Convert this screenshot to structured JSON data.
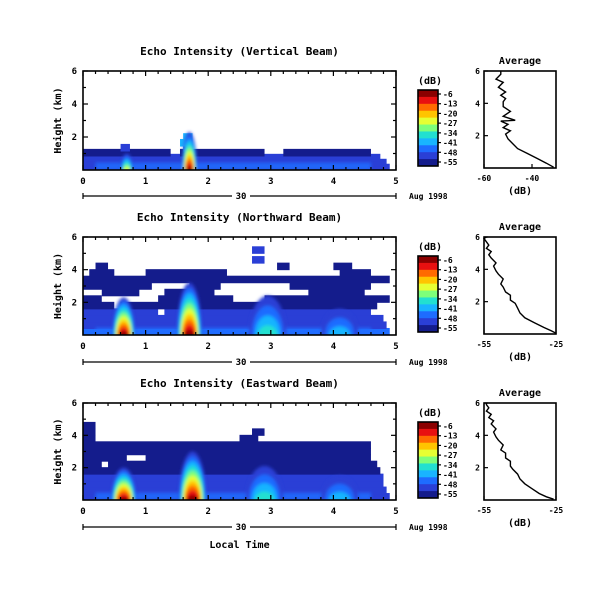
{
  "palette": [
    "#8b0000",
    "#e81010",
    "#ff6a00",
    "#ffc400",
    "#e6ff33",
    "#7dff7a",
    "#22e0d0",
    "#19b4ff",
    "#1e6cff",
    "#2a3fd6",
    "#141c8c"
  ],
  "chart_data": [
    {
      "type": "heatmap",
      "title": "Echo Intensity (Vertical Beam)",
      "xlabel": "",
      "ylabel": "Height (km)",
      "xlim": [
        0,
        5
      ],
      "ylim": [
        0,
        6
      ],
      "xticks": [
        "0",
        "1",
        "2",
        "3",
        "4",
        "5"
      ],
      "yticks": [
        "2",
        "4",
        "6"
      ],
      "date_label": "30",
      "date_suffix": "Aug 1998",
      "colorbar": {
        "unit": "(dB)",
        "ticks": [
          "-6",
          "-13",
          "-20",
          "-27",
          "-34",
          "-41",
          "-48",
          "-55"
        ]
      },
      "bands": [
        {
          "y": 0.15,
          "x": [
            [
              0.0,
              4.9
            ]
          ],
          "lvl": 9
        },
        {
          "y": 0.45,
          "x": [
            [
              0.0,
              4.85
            ]
          ],
          "lvl": 9
        },
        {
          "y": 0.75,
          "x": [
            [
              0.0,
              4.75
            ]
          ],
          "lvl": 9
        },
        {
          "y": 1.05,
          "x": [
            [
              0.0,
              1.4
            ],
            [
              1.55,
              2.9
            ],
            [
              3.2,
              4.6
            ]
          ],
          "lvl": 10
        },
        {
          "y": 1.35,
          "x": [
            [
              0.6,
              0.75
            ],
            [
              1.6,
              1.75
            ]
          ],
          "lvl": 9
        },
        {
          "y": 1.65,
          "x": [
            [
              1.55,
              1.75
            ]
          ],
          "lvl": 7
        },
        {
          "y": 2.0,
          "x": [
            [
              1.6,
              1.75
            ]
          ],
          "lvl": 7
        }
      ],
      "plumes": [
        {
          "x": 1.7,
          "h": 2.3,
          "w": 0.12,
          "pk": 1
        },
        {
          "x": 0.7,
          "h": 1.0,
          "w": 0.1,
          "pk": 5
        }
      ],
      "profile": {
        "title": "Average",
        "xlabel": "(dB)",
        "xlim": [
          -60,
          -30
        ],
        "ylim": [
          0,
          6
        ],
        "xticks": [
          "-60",
          "-40"
        ],
        "yticks": [
          "2",
          "4",
          "6"
        ],
        "x": [
          -31,
          -34,
          -38,
          -42,
          -46,
          -48,
          -50,
          -51,
          -49,
          -52,
          -50,
          -53,
          -47,
          -52,
          -49,
          -52,
          -52,
          -51,
          -53,
          -51,
          -54,
          -52,
          -55,
          -53,
          -53
        ],
        "y": [
          0.05,
          0.3,
          0.6,
          0.9,
          1.2,
          1.5,
          1.8,
          2.1,
          2.3,
          2.5,
          2.7,
          2.9,
          2.95,
          3.2,
          3.5,
          3.8,
          4.1,
          4.3,
          4.5,
          4.7,
          5.0,
          5.3,
          5.5,
          5.8,
          6.0
        ]
      }
    },
    {
      "type": "heatmap",
      "title": "Echo Intensity (Northward Beam)",
      "xlabel": "",
      "ylabel": "Height (km)",
      "xlim": [
        0,
        5
      ],
      "ylim": [
        0,
        6
      ],
      "xticks": [
        "0",
        "1",
        "2",
        "3",
        "4",
        "5"
      ],
      "yticks": [
        "2",
        "4",
        "6"
      ],
      "date_label": "30",
      "date_suffix": "Aug 1998",
      "colorbar": {
        "unit": "(dB)",
        "ticks": [
          "-6",
          "-13",
          "-20",
          "-27",
          "-34",
          "-41",
          "-48",
          "-55"
        ]
      },
      "bands": [
        {
          "y": 0.2,
          "x": [
            [
              0.0,
              4.9
            ]
          ],
          "lvl": 8
        },
        {
          "y": 0.6,
          "x": [
            [
              0.0,
              4.85
            ]
          ],
          "lvl": 9
        },
        {
          "y": 1.0,
          "x": [
            [
              0.0,
              4.8
            ]
          ],
          "lvl": 9
        },
        {
          "y": 1.4,
          "x": [
            [
              0.0,
              1.2
            ],
            [
              1.3,
              4.6
            ]
          ],
          "lvl": 9
        },
        {
          "y": 1.8,
          "x": [
            [
              0.0,
              0.5
            ],
            [
              0.6,
              4.7
            ]
          ],
          "lvl": 10
        },
        {
          "y": 2.2,
          "x": [
            [
              0.0,
              0.3
            ],
            [
              1.2,
              2.4
            ],
            [
              2.9,
              4.9
            ]
          ],
          "lvl": 10
        },
        {
          "y": 2.6,
          "x": [
            [
              0.3,
              0.9
            ],
            [
              1.3,
              2.1
            ],
            [
              3.6,
              4.5
            ]
          ],
          "lvl": 10
        },
        {
          "y": 3.0,
          "x": [
            [
              0.0,
              1.1
            ],
            [
              1.7,
              2.2
            ],
            [
              3.3,
              4.6
            ]
          ],
          "lvl": 10
        },
        {
          "y": 3.4,
          "x": [
            [
              0.0,
              4.9
            ]
          ],
          "lvl": 10
        },
        {
          "y": 3.8,
          "x": [
            [
              0.1,
              0.5
            ],
            [
              1.0,
              2.3
            ],
            [
              4.1,
              4.6
            ]
          ],
          "lvl": 10
        },
        {
          "y": 4.2,
          "x": [
            [
              0.2,
              0.4
            ],
            [
              3.1,
              3.3
            ],
            [
              4.0,
              4.3
            ]
          ],
          "lvl": 10
        },
        {
          "y": 4.6,
          "x": [
            [
              2.7,
              2.9
            ]
          ],
          "lvl": 9
        },
        {
          "y": 5.2,
          "x": [
            [
              2.7,
              2.9
            ]
          ],
          "lvl": 9
        }
      ],
      "plumes": [
        {
          "x": 1.7,
          "h": 3.2,
          "w": 0.2,
          "pk": 1
        },
        {
          "x": 0.65,
          "h": 2.3,
          "w": 0.18,
          "pk": 1
        },
        {
          "x": 2.95,
          "h": 2.4,
          "w": 0.3,
          "pk": 7
        },
        {
          "x": 4.1,
          "h": 1.6,
          "w": 0.3,
          "pk": 8
        }
      ],
      "profile": {
        "title": "Average",
        "xlabel": "(dB)",
        "xlim": [
          -55,
          -25
        ],
        "ylim": [
          0,
          6
        ],
        "xticks": [
          "-55",
          "-25"
        ],
        "yticks": [
          "2",
          "4",
          "6"
        ],
        "x": [
          -25,
          -27,
          -30,
          -34,
          -38,
          -40,
          -41,
          -42,
          -44,
          -44,
          -46,
          -47,
          -48,
          -47,
          -49,
          -50,
          -51,
          -50,
          -52,
          -53,
          -52,
          -54,
          -53,
          -54,
          -55,
          -54
        ],
        "y": [
          0.05,
          0.2,
          0.4,
          0.7,
          1.0,
          1.3,
          1.6,
          1.9,
          2.1,
          2.4,
          2.6,
          2.9,
          3.1,
          3.4,
          3.7,
          3.9,
          4.2,
          4.4,
          4.7,
          4.9,
          5.1,
          5.3,
          5.5,
          5.7,
          5.9,
          6.0
        ]
      }
    },
    {
      "type": "heatmap",
      "title": "Echo Intensity (Eastward Beam)",
      "xlabel": "Local Time",
      "ylabel": "Height (km)",
      "xlim": [
        0,
        5
      ],
      "ylim": [
        0,
        6
      ],
      "xticks": [
        "0",
        "1",
        "2",
        "3",
        "4",
        "5"
      ],
      "yticks": [
        "2",
        "4",
        "6"
      ],
      "date_label": "30",
      "date_suffix": "Aug 1998",
      "colorbar": {
        "unit": "(dB)",
        "ticks": [
          "-6",
          "-13",
          "-20",
          "-27",
          "-34",
          "-41",
          "-48",
          "-55"
        ]
      },
      "bands": [
        {
          "y": 0.2,
          "x": [
            [
              0.0,
              4.9
            ]
          ],
          "lvl": 9
        },
        {
          "y": 0.6,
          "x": [
            [
              0.0,
              4.85
            ]
          ],
          "lvl": 9
        },
        {
          "y": 1.0,
          "x": [
            [
              0.0,
              4.8
            ]
          ],
          "lvl": 9
        },
        {
          "y": 1.4,
          "x": [
            [
              0.0,
              4.8
            ]
          ],
          "lvl": 9
        },
        {
          "y": 1.8,
          "x": [
            [
              0.0,
              4.75
            ]
          ],
          "lvl": 10
        },
        {
          "y": 2.2,
          "x": [
            [
              0.0,
              0.3
            ],
            [
              0.4,
              4.7
            ]
          ],
          "lvl": 10
        },
        {
          "y": 2.6,
          "x": [
            [
              0.0,
              0.7
            ],
            [
              1.0,
              4.6
            ]
          ],
          "lvl": 10
        },
        {
          "y": 3.0,
          "x": [
            [
              0.0,
              4.6
            ]
          ],
          "lvl": 10
        },
        {
          "y": 3.4,
          "x": [
            [
              0.0,
              4.6
            ]
          ],
          "lvl": 10
        },
        {
          "y": 3.8,
          "x": [
            [
              0.0,
              0.2
            ],
            [
              2.5,
              2.8
            ]
          ],
          "lvl": 10
        },
        {
          "y": 4.2,
          "x": [
            [
              0.0,
              0.2
            ],
            [
              2.7,
              2.9
            ]
          ],
          "lvl": 10
        },
        {
          "y": 4.6,
          "x": [
            [
              0.0,
              0.2
            ]
          ],
          "lvl": 10
        }
      ],
      "plumes": [
        {
          "x": 1.75,
          "h": 3.0,
          "w": 0.22,
          "pk": 1
        },
        {
          "x": 0.65,
          "h": 2.0,
          "w": 0.2,
          "pk": 1
        },
        {
          "x": 2.9,
          "h": 2.1,
          "w": 0.3,
          "pk": 7
        },
        {
          "x": 4.1,
          "h": 1.5,
          "w": 0.3,
          "pk": 8
        }
      ],
      "profile": {
        "title": "Average",
        "xlabel": "(dB)",
        "xlim": [
          -55,
          -25
        ],
        "ylim": [
          0,
          6
        ],
        "xticks": [
          "-55",
          "-25"
        ],
        "yticks": [
          "2",
          "4",
          "6"
        ],
        "x": [
          -26,
          -29,
          -32,
          -35,
          -38,
          -40,
          -41,
          -43,
          -44,
          -44,
          -46,
          -46,
          -48,
          -47,
          -49,
          -50,
          -51,
          -50,
          -52,
          -51,
          -53,
          -52,
          -54,
          -53,
          -54,
          -54
        ],
        "y": [
          0.05,
          0.2,
          0.4,
          0.7,
          1.0,
          1.3,
          1.6,
          1.9,
          2.1,
          2.4,
          2.6,
          2.9,
          3.1,
          3.4,
          3.7,
          3.9,
          4.2,
          4.4,
          4.7,
          4.9,
          5.1,
          5.3,
          5.5,
          5.7,
          5.9,
          6.0
        ]
      }
    }
  ]
}
